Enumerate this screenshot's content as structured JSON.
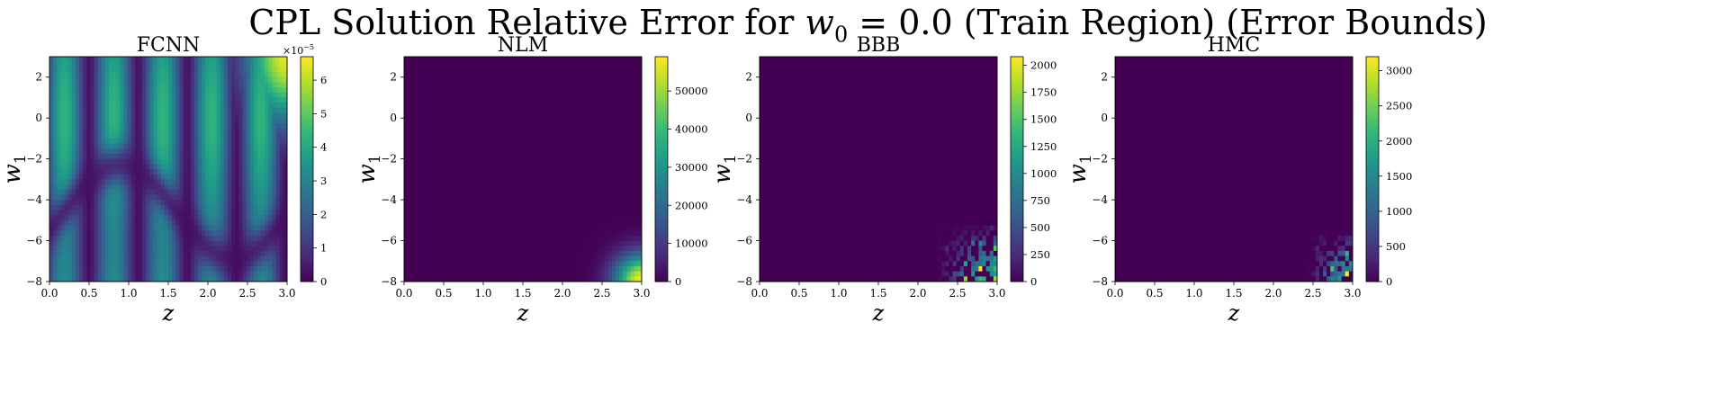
{
  "figure": {
    "suptitle_text": "CPL Solution Relative Error for ",
    "suptitle_math": "w",
    "suptitle_sub": "0",
    "suptitle_rest": " = 0.0 (Train Region) (Error Bounds)"
  },
  "chart_data": [
    {
      "type": "heatmap",
      "title": "FCNN",
      "xlabel": "z",
      "ylabel": "w",
      "ylabel_sub": "1",
      "xlim": [
        0.0,
        3.0
      ],
      "ylim": [
        -8,
        3
      ],
      "xticks": [
        "0.0",
        "0.5",
        "1.0",
        "1.5",
        "2.0",
        "2.5",
        "3.0"
      ],
      "yticks": [
        "2",
        "0",
        "−2",
        "−4",
        "−6",
        "−8"
      ],
      "colormap": "viridis",
      "colorbar": {
        "range": [
          0,
          6.7
        ],
        "ticks": [
          "0",
          "1",
          "2",
          "3",
          "4",
          "5",
          "6"
        ],
        "multiplier": "×10",
        "multiplier_exp": "−5"
      },
      "pattern": "Relative error oscillates in vertical bands along z with a low-error curve crossing w1; maximum (~6.7e-5) at z=3.0, w1=3"
    },
    {
      "type": "heatmap",
      "title": "NLM",
      "xlabel": "z",
      "ylabel": "w",
      "ylabel_sub": "1",
      "xlim": [
        0.0,
        3.0
      ],
      "ylim": [
        -8,
        3
      ],
      "xticks": [
        "0.0",
        "0.5",
        "1.0",
        "1.5",
        "2.0",
        "2.5",
        "3.0"
      ],
      "yticks": [
        "2",
        "0",
        "−2",
        "−4",
        "−6",
        "−8"
      ],
      "colormap": "viridis",
      "colorbar": {
        "range": [
          0,
          59000
        ],
        "ticks": [
          "0",
          "10000",
          "20000",
          "30000",
          "40000",
          "50000"
        ]
      },
      "pattern": "Near zero everywhere except a smooth corner of high error at z≈3.0, w1≈-8 (max ~59000)"
    },
    {
      "type": "heatmap",
      "title": "BBB",
      "xlabel": "z",
      "ylabel": "w",
      "ylabel_sub": "1",
      "xlim": [
        0.0,
        3.0
      ],
      "ylim": [
        -8,
        3
      ],
      "xticks": [
        "0.0",
        "0.5",
        "1.0",
        "1.5",
        "2.0",
        "2.5",
        "3.0"
      ],
      "yticks": [
        "2",
        "0",
        "−2",
        "−4",
        "−6",
        "−8"
      ],
      "colormap": "viridis",
      "colorbar": {
        "range": [
          0,
          2080
        ],
        "ticks": [
          "0",
          "250",
          "500",
          "750",
          "1000",
          "1250",
          "1500",
          "1750",
          "2000"
        ]
      },
      "pattern": "Near zero everywhere except noisy high-error cells in the bottom-right corner (z 2.3–3.0, w1 −8 to −5.5), max ~2080"
    },
    {
      "type": "heatmap",
      "title": "HMC",
      "xlabel": "z",
      "ylabel": "w",
      "ylabel_sub": "1",
      "xlim": [
        0.0,
        3.0
      ],
      "ylim": [
        -8,
        3
      ],
      "xticks": [
        "0.0",
        "0.5",
        "1.0",
        "1.5",
        "2.0",
        "2.5",
        "3.0"
      ],
      "yticks": [
        "2",
        "0",
        "−2",
        "−4",
        "−6",
        "−8"
      ],
      "colormap": "viridis",
      "colorbar": {
        "range": [
          0,
          3200
        ],
        "ticks": [
          "0",
          "500",
          "1000",
          "1500",
          "2000",
          "2500",
          "3000"
        ]
      },
      "pattern": "Near zero everywhere except noisy high-error cells in the bottom-right corner (z 2.5–3.0, w1 −8 to −6), max ~3200"
    }
  ]
}
